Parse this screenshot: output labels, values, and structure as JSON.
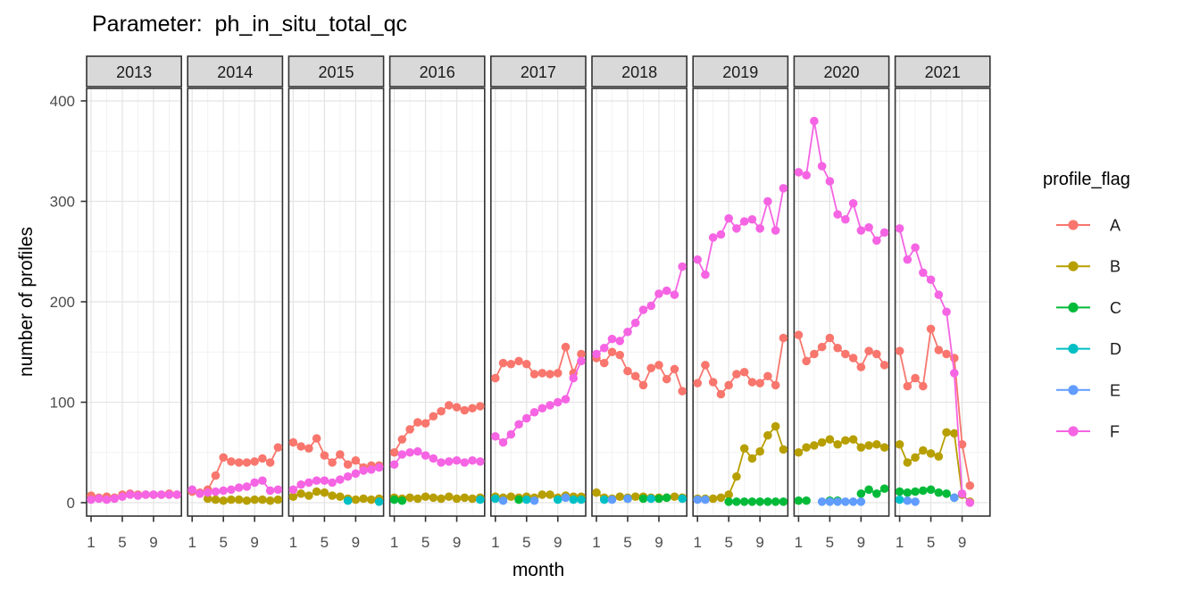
{
  "title": "Parameter:  ph_in_situ_total_qc",
  "chart_data": {
    "type": "line",
    "title": "Parameter:  ph_in_situ_total_qc",
    "xlabel": "month",
    "ylabel": "number of profiles",
    "ylim": [
      0,
      400
    ],
    "y_ticks": [
      0,
      100,
      200,
      300,
      400
    ],
    "x_ticks": [
      1,
      5,
      9
    ],
    "x_range": [
      1,
      12
    ],
    "grid": "major and minor, light gray on white panels",
    "legend_title": "profile_flag",
    "legend_position": "right",
    "legend_order": [
      "A",
      "B",
      "C",
      "D",
      "E",
      "F"
    ],
    "series_colors": {
      "A": "#F8766D",
      "B": "#B79F00",
      "C": "#00BA38",
      "D": "#00BFC4",
      "E": "#619CFF",
      "F": "#F564E3"
    },
    "strip_fill": "#D9D9D9",
    "strip_border": "#333333",
    "facets": [
      {
        "year": "2013",
        "series": {
          "A": [
            7,
            5,
            6,
            5,
            8,
            9,
            8,
            8,
            8,
            8,
            9,
            8
          ],
          "F": [
            3,
            4,
            3,
            4,
            6,
            8,
            7,
            8,
            8,
            8,
            8,
            8
          ]
        }
      },
      {
        "year": "2014",
        "series": {
          "A": [
            11,
            10,
            13,
            27,
            45,
            41,
            40,
            40,
            41,
            44,
            40,
            55
          ],
          "B": [
            null,
            null,
            4,
            3,
            2,
            3,
            3,
            2,
            3,
            3,
            2,
            3
          ],
          "F": [
            13,
            9,
            10,
            11,
            12,
            13,
            15,
            16,
            20,
            22,
            12,
            13
          ]
        }
      },
      {
        "year": "2015",
        "series": {
          "A": [
            60,
            56,
            54,
            64,
            47,
            40,
            48,
            38,
            42,
            35,
            37,
            37
          ],
          "B": [
            6,
            9,
            7,
            11,
            10,
            7,
            6,
            4,
            3,
            4,
            3,
            4
          ],
          "D": [
            null,
            null,
            null,
            null,
            null,
            null,
            null,
            2,
            null,
            null,
            null,
            1
          ],
          "F": [
            13,
            18,
            20,
            22,
            22,
            20,
            23,
            26,
            29,
            32,
            33,
            35
          ]
        }
      },
      {
        "year": "2016",
        "series": {
          "A": [
            50,
            63,
            73,
            80,
            79,
            86,
            91,
            97,
            95,
            92,
            94,
            96
          ],
          "B": [
            5,
            4,
            5,
            4,
            6,
            5,
            4,
            6,
            4,
            5,
            4,
            5
          ],
          "C": [
            3,
            2,
            null,
            null,
            null,
            null,
            null,
            null,
            null,
            null,
            null,
            null
          ],
          "D": [
            null,
            null,
            null,
            null,
            null,
            null,
            null,
            null,
            null,
            null,
            null,
            3
          ],
          "F": [
            38,
            48,
            50,
            51,
            47,
            44,
            40,
            41,
            42,
            40,
            42,
            41
          ]
        }
      },
      {
        "year": "2017",
        "series": {
          "A": [
            124,
            139,
            138,
            141,
            138,
            128,
            129,
            128,
            129,
            155,
            129,
            148
          ],
          "B": [
            6,
            5,
            6,
            5,
            6,
            5,
            8,
            8,
            5,
            7,
            6,
            6
          ],
          "C": [
            null,
            null,
            null,
            3,
            null,
            null,
            null,
            null,
            null,
            null,
            null,
            null
          ],
          "D": [
            4,
            null,
            null,
            null,
            3,
            null,
            null,
            null,
            3,
            null,
            3,
            3
          ],
          "E": [
            null,
            2,
            null,
            null,
            null,
            2,
            null,
            null,
            null,
            5,
            null,
            null
          ],
          "F": [
            66,
            60,
            68,
            78,
            84,
            90,
            94,
            97,
            100,
            103,
            124,
            141
          ]
        }
      },
      {
        "year": "2018",
        "series": {
          "A": [
            144,
            139,
            150,
            147,
            131,
            126,
            117,
            134,
            137,
            123,
            133,
            111
          ],
          "B": [
            10,
            5,
            4,
            6,
            5,
            6,
            6,
            5,
            5,
            5,
            6,
            5
          ],
          "C": [
            null,
            null,
            null,
            null,
            4,
            null,
            4,
            null,
            4,
            5,
            null,
            null
          ],
          "D": [
            null,
            3,
            null,
            null,
            null,
            null,
            null,
            4,
            null,
            null,
            null,
            4
          ],
          "E": [
            null,
            null,
            3,
            null,
            4,
            null,
            null,
            null,
            null,
            null,
            null,
            null
          ],
          "F": [
            148,
            154,
            163,
            161,
            170,
            179,
            192,
            196,
            208,
            211,
            207,
            235
          ]
        }
      },
      {
        "year": "2019",
        "series": {
          "A": [
            119,
            137,
            120,
            108,
            117,
            128,
            130,
            120,
            119,
            126,
            117,
            164
          ],
          "B": [
            4,
            4,
            4,
            5,
            8,
            26,
            54,
            44,
            51,
            67,
            76,
            53
          ],
          "C": [
            null,
            null,
            null,
            null,
            1,
            1,
            1,
            1,
            1,
            1,
            1,
            1
          ],
          "E": [
            3,
            3,
            null,
            null,
            null,
            null,
            null,
            null,
            null,
            null,
            null,
            null
          ],
          "F": [
            242,
            227,
            264,
            267,
            283,
            273,
            280,
            282,
            273,
            300,
            271,
            313
          ]
        }
      },
      {
        "year": "2020",
        "series": {
          "A": [
            167,
            141,
            148,
            155,
            164,
            154,
            148,
            144,
            135,
            151,
            148,
            137
          ],
          "B": [
            50,
            55,
            57,
            60,
            63,
            58,
            62,
            63,
            55,
            57,
            58,
            55
          ],
          "C": [
            2,
            2,
            null,
            null,
            2,
            2,
            null,
            null,
            9,
            13,
            9,
            14
          ],
          "E": [
            null,
            null,
            null,
            1,
            1,
            1,
            1,
            1,
            1,
            null,
            null,
            null
          ],
          "F": [
            329,
            326,
            380,
            335,
            320,
            287,
            282,
            298,
            271,
            274,
            261,
            269
          ]
        }
      },
      {
        "year": "2021",
        "series": {
          "A": [
            151,
            116,
            124,
            116,
            173,
            152,
            148,
            144,
            58,
            17,
            null,
            null
          ],
          "B": [
            58,
            40,
            45,
            52,
            49,
            46,
            70,
            69,
            8,
            1,
            null,
            null
          ],
          "C": [
            11,
            10,
            11,
            12,
            13,
            10,
            9,
            5,
            null,
            null,
            null,
            null
          ],
          "D": [
            3,
            null,
            null,
            null,
            null,
            null,
            null,
            null,
            null,
            null,
            null,
            null
          ],
          "E": [
            null,
            2,
            1,
            null,
            null,
            null,
            null,
            5,
            null,
            null,
            null,
            null
          ],
          "F": [
            273,
            242,
            254,
            229,
            222,
            207,
            190,
            129,
            9,
            0,
            null,
            null
          ]
        }
      }
    ]
  }
}
